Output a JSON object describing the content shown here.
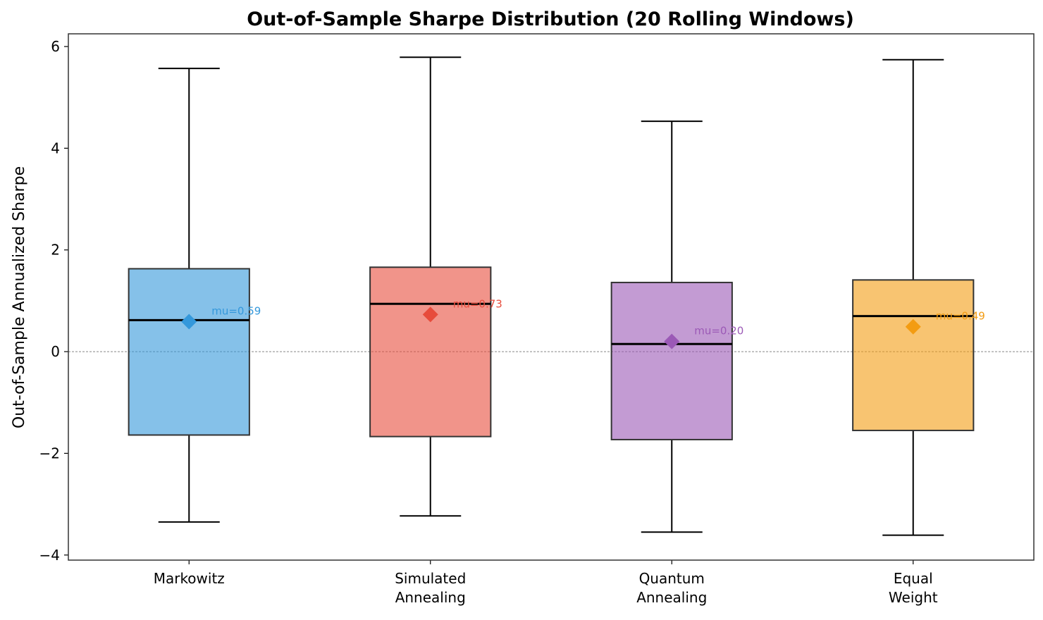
{
  "chart_data": {
    "type": "boxplot",
    "title": "Out-of-Sample Sharpe Distribution (20 Rolling Windows)",
    "xlabel": "",
    "ylabel": "Out-of-Sample Annualized Sharpe",
    "ylim": [
      -4.1,
      6.25
    ],
    "yticks": [
      {
        "value": -4,
        "label": "−4"
      },
      {
        "value": -2,
        "label": "−2"
      },
      {
        "value": 0,
        "label": "0"
      },
      {
        "value": 2,
        "label": "2"
      },
      {
        "value": 4,
        "label": "4"
      },
      {
        "value": 6,
        "label": "6"
      }
    ],
    "reference_line": {
      "y": 0,
      "style": "dashed",
      "color": "#888888"
    },
    "grid": false,
    "series": [
      {
        "category": [
          "Markowitz"
        ],
        "color": "#3498db",
        "whisker_low": -3.35,
        "q1": -1.64,
        "median": 0.62,
        "q3": 1.63,
        "whisker_high": 5.57,
        "mean": 0.59,
        "mean_label": "mu=0.59"
      },
      {
        "category": [
          "Simulated",
          "Annealing"
        ],
        "color": "#e74c3c",
        "whisker_low": -3.23,
        "q1": -1.67,
        "median": 0.94,
        "q3": 1.66,
        "whisker_high": 5.79,
        "mean": 0.73,
        "mean_label": "mu=0.73"
      },
      {
        "category": [
          "Quantum",
          "Annealing"
        ],
        "color": "#9b59b6",
        "whisker_low": -3.55,
        "q1": -1.73,
        "median": 0.15,
        "q3": 1.36,
        "whisker_high": 4.53,
        "mean": 0.2,
        "mean_label": "mu=0.20"
      },
      {
        "category": [
          "Equal",
          "Weight"
        ],
        "color": "#f39c12",
        "whisker_low": -3.61,
        "q1": -1.55,
        "median": 0.7,
        "q3": 1.41,
        "whisker_high": 5.74,
        "mean": 0.49,
        "mean_label": "mu=0.49"
      }
    ]
  }
}
